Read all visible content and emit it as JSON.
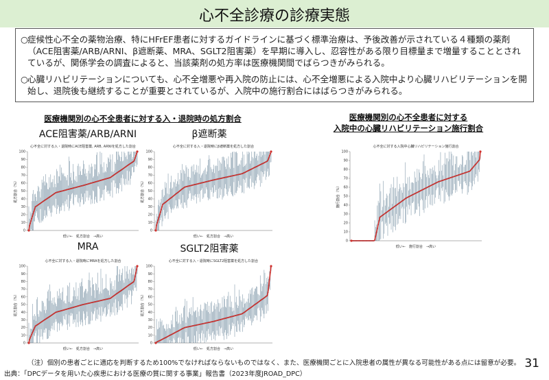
{
  "title": "心不全診療の診療実態",
  "paragraphs": [
    {
      "bullet": "○",
      "text": "症候性心不全の薬物治療、特にHFrEF患者に対するガイドラインに基づく標準治療は、予後改善が示されている４種類の薬剤（ACE阻害薬/ARB/ARNI、β遮断薬、MRA、SGLT2阻害薬）を早期に導入し、忍容性がある限り目標量まで増量することとされているが、関係学会の調査によると、当該薬剤の処方率は医療機関間でばらつきがみられる。"
    },
    {
      "bullet": "○",
      "text": "心臓リハビリテーションについても、心不全増悪や再入院の防止には、心不全増悪による入院中より心臓リハビリテーションを開始し、退院後も継続することが重要とされているが、入院中の施行割合にはばらつきがみられる。"
    }
  ],
  "left_heading": "医療機関別の心不全患者に対する入・退院時の処方割合",
  "right_heading_line1": "医療機関別の心不全患者に対する",
  "right_heading_line2": "入院中の心臓リハビリテーション施行割合",
  "chart_data": [
    {
      "type": "scatter",
      "subtitle": "ACE阻害薬/ARB/ARNI",
      "title": "心不全に対する入・退院時にACE阻害薬, ARB, ARNIを処方した割合",
      "ylabel": "処方割合（%）",
      "xlabel": "低い←　処方割合　→高い",
      "yticks": [
        0,
        10,
        20,
        30,
        40,
        50,
        60,
        70,
        80,
        90,
        100
      ],
      "ylim": [
        0,
        100
      ],
      "curve": {
        "start": 0,
        "low": 30,
        "q1": 48,
        "mid": 57,
        "q3": 67,
        "high": 88,
        "end": 100
      }
    },
    {
      "type": "scatter",
      "subtitle": "β遮断薬",
      "title": "心不全に対する入・退院時にβ遮断薬を処方した割合",
      "ylabel": "処方割合（%）",
      "xlabel": "低い←　処方割合　→高い",
      "yticks": [
        0,
        10,
        20,
        30,
        40,
        50,
        60,
        70,
        80,
        90,
        100
      ],
      "ylim": [
        0,
        100
      ],
      "curve": {
        "start": 0,
        "low": 33,
        "q1": 55,
        "mid": 64,
        "q3": 72,
        "high": 88,
        "end": 100
      }
    },
    {
      "type": "scatter",
      "subtitle": "MRA",
      "title": "心不全に対する入・退院時にMRAを処方した割合",
      "ylabel": "処方割合（%）",
      "xlabel": "低い←　処方割合　→高い",
      "yticks": [
        0,
        10,
        20,
        30,
        40,
        50,
        60,
        70,
        80,
        90,
        100
      ],
      "ylim": [
        0,
        100
      ],
      "curve": {
        "start": 0,
        "low": 22,
        "q1": 40,
        "mid": 50,
        "q3": 58,
        "high": 80,
        "end": 100
      }
    },
    {
      "type": "scatter",
      "subtitle": "SGLT2阻害薬",
      "title": "心不全に対する入・退院時にSGLT2阻害薬を処方した割合",
      "ylabel": "処方割合（%）",
      "xlabel": "低い←　処方割合　→高い",
      "yticks": [
        0,
        10,
        20,
        30,
        40,
        50,
        60,
        70,
        80,
        90,
        100
      ],
      "ylim": [
        0,
        100
      ],
      "curve": {
        "start": 0,
        "low": 5,
        "q1": 20,
        "mid": 28,
        "q3": 38,
        "high": 62,
        "end": 100
      }
    },
    {
      "type": "scatter",
      "subtitle": "",
      "title": "心不全に対する入院中心臓リハビリテーション施行割合",
      "ylabel": "施行割合（%）",
      "xlabel": "低い←　施行割合　→高い",
      "yticks": [
        0,
        10,
        20,
        30,
        40,
        50,
        60,
        70,
        80,
        90,
        100
      ],
      "ylim": [
        0,
        100
      ],
      "curve": {
        "start": 0,
        "zero_frac": 0.18,
        "q1": 48,
        "mid": 66,
        "q3": 78,
        "high": 92,
        "end": 100
      }
    }
  ],
  "footnote": "（注）個別の患者ごとに適応を判断するため100%でなければならないものではなく、また、医療機関ごとに入院患者の属性が異なる可能性がある点には留意が必要。",
  "source": "出典：「DPCデータを用いた心疾患における医療の質に関する事業」報告書（2023年度JROAD_DPC）",
  "page_number": "31",
  "colors": {
    "title_bg": "#dcefd2",
    "whisker": "#2f5773",
    "dot": "#20394f",
    "curve": "#d0312d"
  }
}
